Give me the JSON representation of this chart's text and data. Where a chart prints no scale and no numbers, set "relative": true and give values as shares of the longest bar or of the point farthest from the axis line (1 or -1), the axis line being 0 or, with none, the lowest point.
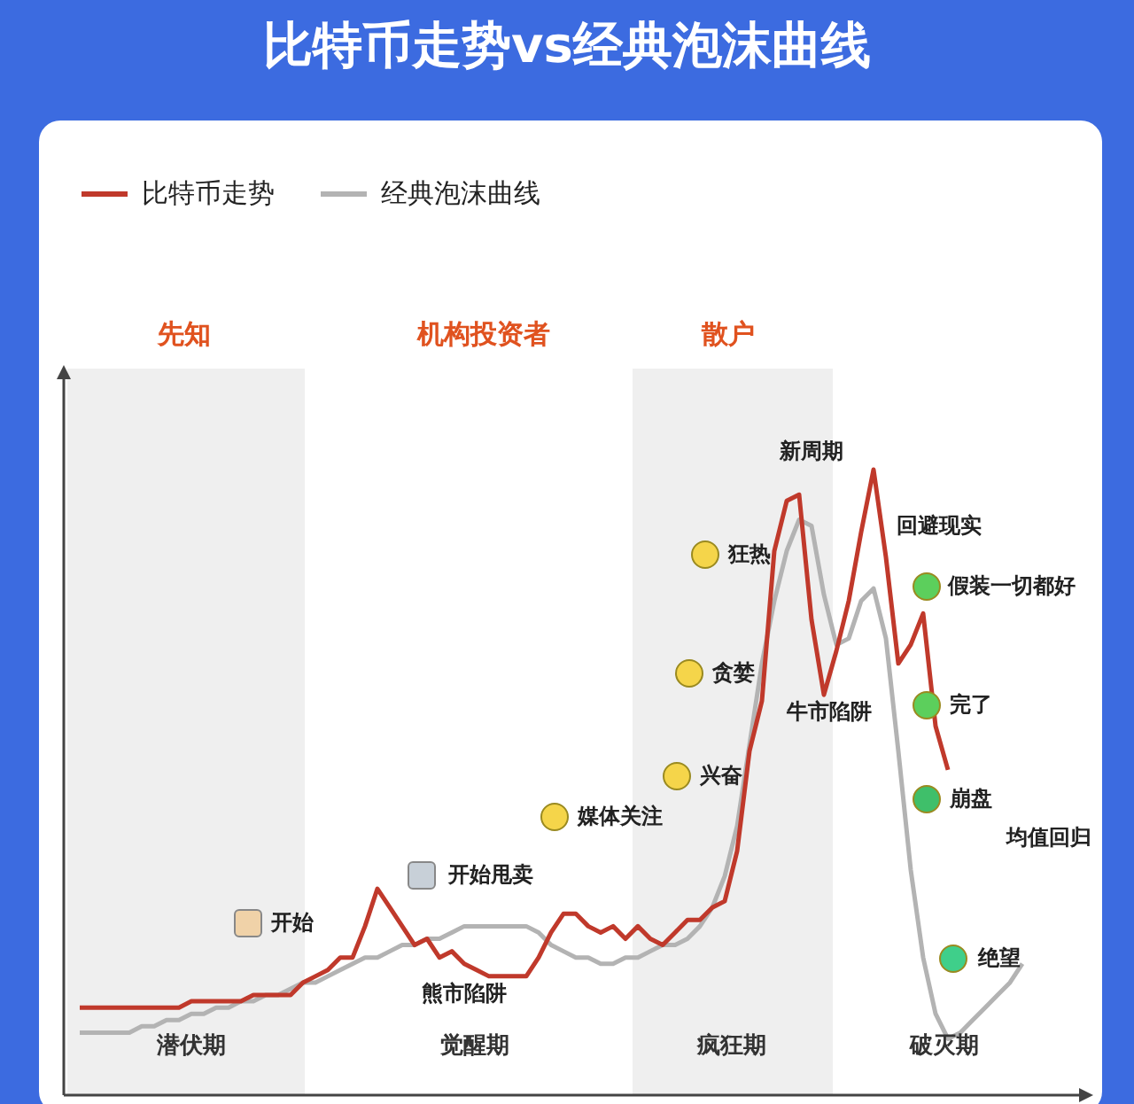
{
  "chart_data": {
    "type": "line",
    "title": "比特币走势vs经典泡沫曲线",
    "relative": true,
    "tick_labels": false,
    "legend": "top left",
    "categories": [
      null,
      null,
      null,
      null,
      null,
      null,
      null,
      null,
      null,
      null,
      null,
      null,
      null,
      null,
      null,
      null,
      null,
      null,
      null,
      null,
      null,
      null,
      null,
      null,
      null,
      null,
      null,
      null,
      null,
      null,
      null,
      null,
      null,
      null,
      null,
      null,
      null,
      null,
      null,
      null,
      null,
      null,
      null,
      null,
      null,
      null,
      null,
      null,
      null,
      null,
      null,
      null,
      null,
      null,
      null,
      null,
      null,
      null,
      null,
      null,
      null,
      null,
      null,
      null,
      null,
      null,
      null,
      null,
      null,
      null,
      null,
      null,
      null,
      null,
      null,
      null,
      null
    ],
    "series": [
      {
        "name": "比特币走势",
        "color": "#c0392b",
        "values": [
          0.14,
          0.14,
          0.14,
          0.14,
          0.14,
          0.14,
          0.14,
          0.14,
          0.14,
          0.15,
          0.15,
          0.15,
          0.15,
          0.15,
          0.16,
          0.16,
          0.16,
          0.16,
          0.18,
          0.19,
          0.2,
          0.22,
          0.22,
          0.27,
          0.33,
          0.3,
          0.27,
          0.24,
          0.25,
          0.22,
          0.23,
          0.21,
          0.2,
          0.19,
          0.19,
          0.19,
          0.19,
          0.22,
          0.26,
          0.29,
          0.29,
          0.27,
          0.26,
          0.27,
          0.25,
          0.27,
          0.25,
          0.24,
          0.26,
          0.28,
          0.28,
          0.3,
          0.31,
          0.39,
          0.55,
          0.63,
          0.87,
          0.95,
          0.96,
          0.76,
          0.64,
          0.71,
          0.79,
          0.9,
          1.0,
          0.86,
          0.69,
          0.72,
          0.77,
          0.59,
          0.52,
          null,
          null,
          null,
          null,
          null,
          null
        ]
      },
      {
        "name": "经典泡沫曲线",
        "color": "#b3b3b3",
        "values": [
          0.1,
          0.1,
          0.1,
          0.1,
          0.1,
          0.11,
          0.11,
          0.12,
          0.12,
          0.13,
          0.13,
          0.14,
          0.14,
          0.15,
          0.15,
          0.16,
          0.16,
          0.17,
          0.18,
          0.18,
          0.19,
          0.2,
          0.21,
          0.22,
          0.22,
          0.23,
          0.24,
          0.24,
          0.25,
          0.25,
          0.26,
          0.27,
          0.27,
          0.27,
          0.27,
          0.27,
          0.27,
          0.26,
          0.24,
          0.23,
          0.22,
          0.22,
          0.21,
          0.21,
          0.22,
          0.22,
          0.23,
          0.24,
          0.24,
          0.25,
          0.27,
          0.3,
          0.35,
          0.43,
          0.56,
          0.69,
          0.79,
          0.87,
          0.92,
          0.91,
          0.8,
          0.72,
          0.73,
          0.79,
          0.81,
          0.73,
          0.55,
          0.36,
          0.22,
          0.13,
          0.09,
          0.1,
          0.12,
          0.14,
          0.16,
          0.18,
          0.21
        ]
      }
    ],
    "annotations": [
      "先知",
      "散户",
      "机构投资者",
      "潜伏期",
      "觉醒期",
      "疯狂期",
      "破灭期",
      "开始",
      "开始甩卖",
      "熊市陷阱",
      "媒体关注",
      "兴奋",
      "贪婪",
      "狂热",
      "新周期",
      "牛市陷阱",
      "回避现实",
      "假装一切都好",
      "完了",
      "崩盘",
      "均值回归",
      "绝望"
    ]
  }
}
